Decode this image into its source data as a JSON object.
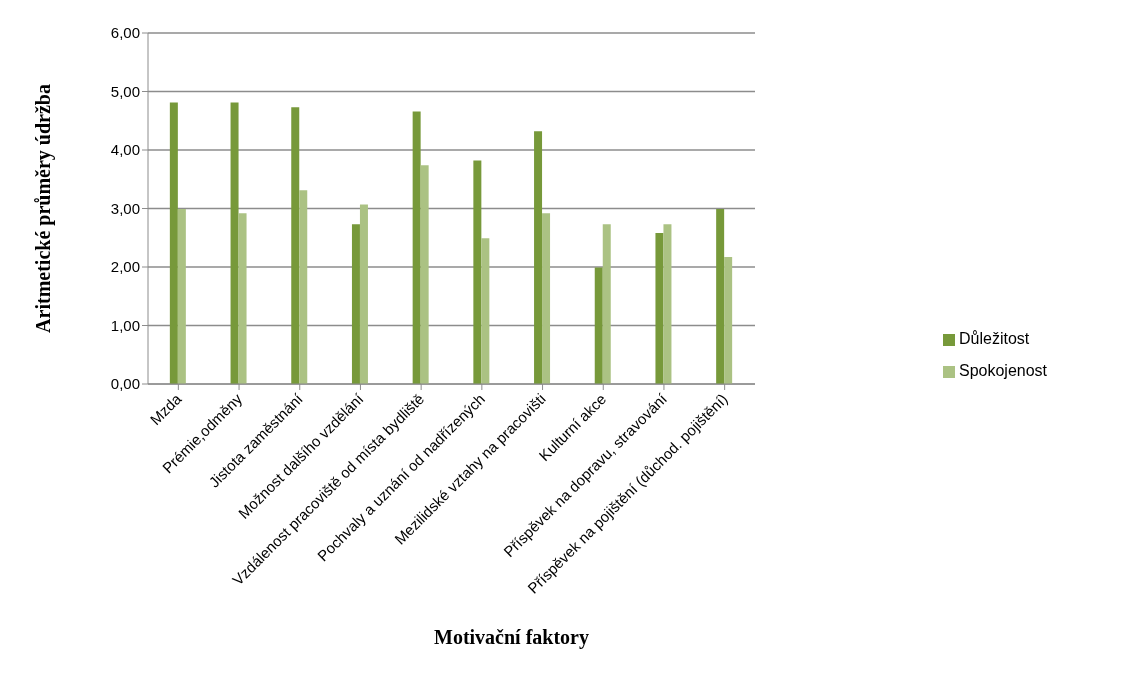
{
  "chart_data": {
    "type": "bar",
    "xlabel": "Motivační faktory",
    "ylabel": "Aritmetické průměry údržba",
    "categories": [
      "Mzda",
      "Prémie,odměny",
      "Jistota zaměstnání",
      "Možnost dalšího vzdělání",
      "Vzdálenost pracoviště od místa bydliště",
      "Pochvaly a uznání od nadřízených",
      "Mezilidské vztahy na pracovišti",
      "Kulturní akce",
      "Příspěvek na dopravu, stravování",
      "Příspěvek na pojištění (důchod. pojištění)"
    ],
    "series": [
      {
        "name": "Důležitost",
        "color": "#77993a",
        "values": [
          4.81,
          4.81,
          4.73,
          2.73,
          4.66,
          3.82,
          4.32,
          1.99,
          2.58,
          2.99
        ]
      },
      {
        "name": "Spokojenost",
        "color": "#abc283",
        "values": [
          2.99,
          2.92,
          3.31,
          3.07,
          3.74,
          2.49,
          2.92,
          2.73,
          2.73,
          2.17
        ]
      }
    ],
    "ylim": [
      0,
      6
    ],
    "yticks": [
      {
        "value": 0,
        "label": "0,00"
      },
      {
        "value": 1,
        "label": "1,00"
      },
      {
        "value": 2,
        "label": "2,00"
      },
      {
        "value": 3,
        "label": "3,00"
      },
      {
        "value": 4,
        "label": "4,00"
      },
      {
        "value": 5,
        "label": "5,00"
      },
      {
        "value": 6,
        "label": "6,00"
      }
    ],
    "grid": "y",
    "legend": "right"
  }
}
